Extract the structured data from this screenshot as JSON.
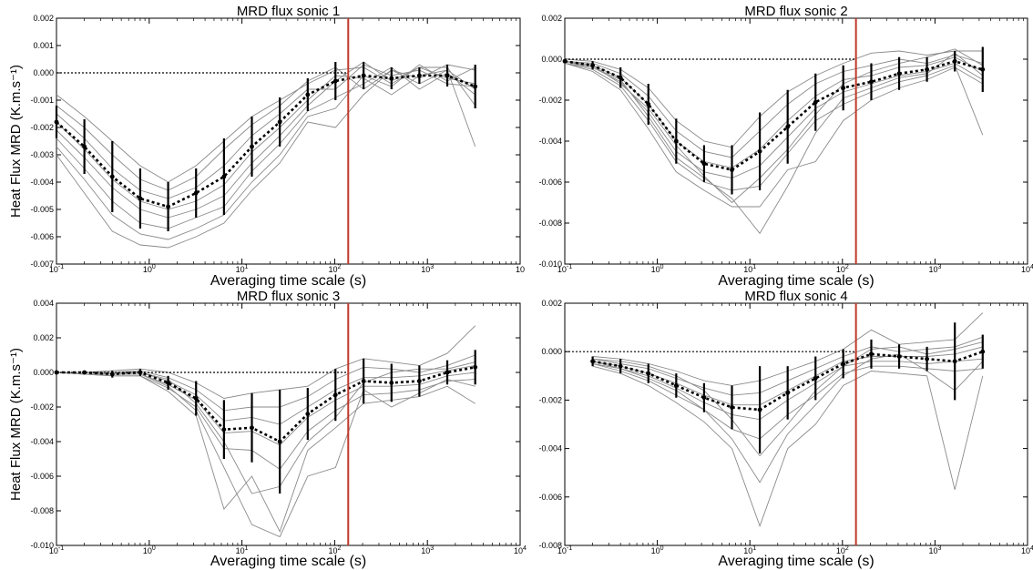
{
  "chart_data": [
    {
      "type": "line",
      "title": "MRD flux sonic 1",
      "xlabel": "Averaging time scale (s)",
      "ylabel": "Heat Flux MRD (K.m.s⁻¹)",
      "xscale": "log",
      "xlim": [
        0.1,
        10000
      ],
      "ylim": [
        -0.007,
        0.002
      ],
      "ytick_labels": [
        "0.002",
        "0.001",
        "0.000",
        "-0.001",
        "-0.002",
        "-0.003",
        "-0.004",
        "-0.005",
        "-0.006",
        "-0.007"
      ],
      "xtick_labels": [
        {
          "base": "10",
          "exp": "-1"
        },
        {
          "base": "10",
          "exp": "0"
        },
        {
          "base": "10",
          "exp": "1"
        },
        {
          "base": "10",
          "exp": "2"
        },
        {
          "base": "10",
          "exp": "3"
        },
        {
          "base": "10",
          "exp": ""
        }
      ],
      "vline_x": 140,
      "vline_color": "#c0392b",
      "zero_line": true,
      "x": [
        0.1,
        0.2,
        0.4,
        0.8,
        1.6,
        3.2,
        6.4,
        12.8,
        25.6,
        51.2,
        102,
        205,
        410,
        819,
        1638,
        3277
      ],
      "mean": [
        -0.0018,
        -0.0027,
        -0.0038,
        -0.0046,
        -0.0049,
        -0.0044,
        -0.0038,
        -0.0027,
        -0.0018,
        -0.0008,
        -0.0003,
        -0.0001,
        -0.0002,
        -0.0001,
        -0.0001,
        -0.0005
      ],
      "std": [
        0.0006,
        0.001,
        0.0013,
        0.0011,
        0.0009,
        0.0009,
        0.0014,
        0.0011,
        0.0009,
        0.0006,
        0.0007,
        0.0005,
        0.0004,
        0.0003,
        0.0004,
        0.0008
      ],
      "individual_series": [
        [
          -0.0008,
          -0.0016,
          -0.0025,
          -0.0034,
          -0.004,
          -0.0034,
          -0.0025,
          -0.0016,
          -0.001,
          -0.0004,
          0.0001,
          0.0002,
          -0.0004,
          0.0002,
          0.0002,
          -0.0012
        ],
        [
          -0.0012,
          -0.002,
          -0.003,
          -0.0039,
          -0.0043,
          -0.0038,
          -0.0028,
          -0.0019,
          -0.0012,
          -0.0003,
          0.0002,
          -0.0006,
          0.0001,
          -0.0002,
          0.0003,
          0.0001
        ],
        [
          -0.0015,
          -0.0024,
          -0.0035,
          -0.0043,
          -0.0046,
          -0.0042,
          -0.0034,
          -0.0023,
          -0.0015,
          -0.0006,
          -0.0006,
          0.0003,
          -0.0001,
          0.0001,
          -0.0004,
          -0.0005
        ],
        [
          -0.0018,
          -0.0028,
          -0.0039,
          -0.0047,
          -0.005,
          -0.0047,
          -0.0041,
          -0.0029,
          -0.002,
          -0.001,
          -0.0001,
          -0.0002,
          -0.0008,
          -0.0001,
          0.0001,
          -0.0027
        ],
        [
          -0.0021,
          -0.0031,
          -0.0042,
          -0.005,
          -0.0053,
          -0.005,
          -0.0045,
          -0.0033,
          -0.0023,
          -0.0012,
          -0.0003,
          0.0004,
          -0.0003,
          0.0002,
          -0.0002,
          -0.0004
        ],
        [
          -0.0024,
          -0.0035,
          -0.0047,
          -0.0055,
          -0.0057,
          -0.0053,
          -0.0049,
          -0.0036,
          -0.0026,
          -0.0014,
          -0.0009,
          -0.0004,
          0.0002,
          -0.0006,
          0.0,
          -0.0008
        ],
        [
          -0.0027,
          -0.0039,
          -0.0052,
          -0.0059,
          -0.0061,
          -0.0057,
          -0.0052,
          -0.004,
          -0.003,
          -0.0016,
          -0.0013,
          -0.0001,
          -0.0005,
          0.0003,
          -0.0003,
          0.0002
        ],
        [
          -0.003,
          -0.0044,
          -0.0058,
          -0.0063,
          -0.0064,
          -0.006,
          -0.0055,
          -0.0043,
          -0.0033,
          -0.0018,
          -0.002,
          -0.0008,
          0.0001,
          -0.0004,
          0.0001,
          -0.0006
        ]
      ]
    },
    {
      "type": "line",
      "title": "MRD flux sonic 2",
      "xlabel": "Averaging time scale (s)",
      "ylabel": "",
      "xscale": "log",
      "xlim": [
        0.1,
        10000
      ],
      "ylim": [
        -0.01,
        0.002
      ],
      "ytick_labels": [
        "0.002",
        "0.000",
        "-0.002",
        "-0.004",
        "-0.006",
        "-0.008",
        "-0.010"
      ],
      "xtick_labels": [
        {
          "base": "10",
          "exp": "-1"
        },
        {
          "base": "10",
          "exp": "0"
        },
        {
          "base": "10",
          "exp": "1"
        },
        {
          "base": "10",
          "exp": "2"
        },
        {
          "base": "10",
          "exp": "3"
        },
        {
          "base": "10",
          "exp": "4"
        }
      ],
      "vline_x": 140,
      "vline_color": "#c0392b",
      "zero_line": true,
      "x": [
        0.1,
        0.2,
        0.4,
        0.8,
        1.6,
        3.2,
        6.4,
        12.8,
        25.6,
        51.2,
        102,
        205,
        410,
        819,
        1638,
        3277
      ],
      "mean": [
        -0.0001,
        -0.0003,
        -0.0009,
        -0.0022,
        -0.004,
        -0.0051,
        -0.0054,
        -0.0045,
        -0.0033,
        -0.0021,
        -0.0014,
        -0.0011,
        -0.0007,
        -0.0005,
        -0.0001,
        -0.0005
      ],
      "std": [
        0.0001,
        0.0002,
        0.0005,
        0.001,
        0.0011,
        0.0009,
        0.0012,
        0.0019,
        0.0018,
        0.0014,
        0.0011,
        0.0009,
        0.0008,
        0.0006,
        0.0005,
        0.0011
      ],
      "individual_series": [
        [
          0.0,
          -0.0001,
          -0.0005,
          -0.0014,
          -0.003,
          -0.004,
          -0.0043,
          -0.0028,
          -0.0016,
          -0.0008,
          -0.0002,
          0.0003,
          0.0004,
          0.0002,
          0.0004,
          0.0004
        ],
        [
          -0.0001,
          -0.0002,
          -0.0007,
          -0.0018,
          -0.0035,
          -0.0045,
          -0.0048,
          -0.0035,
          -0.0022,
          -0.0012,
          -0.0006,
          -0.0003,
          0.0,
          -0.0002,
          0.0002,
          -0.0002
        ],
        [
          -0.0001,
          -0.0003,
          -0.0009,
          -0.0022,
          -0.004,
          -0.005,
          -0.0053,
          -0.0044,
          -0.003,
          -0.0018,
          -0.001,
          -0.0008,
          -0.0004,
          -0.0003,
          0.0001,
          -0.0006
        ],
        [
          -0.0002,
          -0.0004,
          -0.0011,
          -0.0026,
          -0.0045,
          -0.0055,
          -0.0058,
          -0.0052,
          -0.0038,
          -0.0024,
          -0.0016,
          -0.0012,
          -0.0008,
          -0.0006,
          -0.0002,
          -0.001
        ],
        [
          -0.0002,
          -0.0005,
          -0.0013,
          -0.003,
          -0.005,
          -0.006,
          -0.0064,
          -0.0062,
          -0.0046,
          -0.003,
          -0.0022,
          -0.0016,
          -0.0011,
          -0.0008,
          -0.0003,
          -0.0037
        ],
        [
          -0.0002,
          -0.0006,
          -0.0015,
          -0.0034,
          -0.0055,
          -0.0064,
          -0.0072,
          -0.0072,
          -0.0054,
          -0.005,
          -0.003,
          -0.002,
          -0.0014,
          -0.001,
          -0.0004,
          -0.0012
        ],
        [
          -0.0001,
          -0.0004,
          -0.001,
          -0.0028,
          -0.0048,
          -0.0058,
          -0.0068,
          -0.0085,
          -0.0062,
          -0.0036,
          -0.0019,
          -0.0014,
          -0.0009,
          -0.0007,
          0.0003,
          -0.0008
        ],
        [
          -0.0001,
          -0.0003,
          -0.0012,
          -0.0024,
          -0.0042,
          -0.0057,
          -0.007,
          -0.0058,
          -0.0044,
          -0.0027,
          -0.0012,
          -0.0006,
          -0.0002,
          0.0001,
          0.0005,
          -0.0003
        ]
      ]
    },
    {
      "type": "line",
      "title": "MRD flux sonic 3",
      "xlabel": "Averaging time scale (s)",
      "ylabel": "Heat Flux MRD (K.m.s⁻¹)",
      "xscale": "log",
      "xlim": [
        0.1,
        10000
      ],
      "ylim": [
        -0.01,
        0.004
      ],
      "ytick_labels": [
        "0.004",
        "0.002",
        "0.000",
        "-0.002",
        "-0.004",
        "-0.006",
        "-0.008",
        "-0.010"
      ],
      "xtick_labels": [
        {
          "base": "10",
          "exp": "-1"
        },
        {
          "base": "10",
          "exp": "0"
        },
        {
          "base": "10",
          "exp": "1"
        },
        {
          "base": "10",
          "exp": "2"
        },
        {
          "base": "10",
          "exp": "3"
        },
        {
          "base": "10",
          "exp": "4"
        }
      ],
      "vline_x": 140,
      "vline_color": "#c0392b",
      "zero_line": true,
      "x": [
        0.1,
        0.2,
        0.4,
        0.8,
        1.6,
        3.2,
        6.4,
        12.8,
        25.6,
        51.2,
        102,
        205,
        410,
        819,
        1638,
        3277
      ],
      "mean": [
        0.0,
        0.0,
        -0.0001,
        0.0,
        -0.0006,
        -0.0015,
        -0.0033,
        -0.0032,
        -0.004,
        -0.0024,
        -0.0013,
        -0.0005,
        -0.0006,
        -0.0005,
        0.0,
        0.0003
      ],
      "std": [
        0.0,
        0.0001,
        0.0002,
        0.0002,
        0.0004,
        0.001,
        0.0017,
        0.002,
        0.003,
        0.0015,
        0.0015,
        0.0013,
        0.0011,
        0.0009,
        0.0007,
        0.001
      ],
      "individual_series": [
        [
          0.0,
          0.0,
          0.0001,
          0.0002,
          0.0,
          -0.0006,
          -0.0015,
          -0.0012,
          -0.001,
          -0.0008,
          0.0002,
          0.0008,
          0.0006,
          0.0004,
          0.0011,
          0.0027
        ],
        [
          0.0,
          0.0,
          0.0,
          0.0001,
          -0.0003,
          -0.001,
          -0.0022,
          -0.002,
          -0.002,
          -0.0014,
          -0.0004,
          0.0003,
          0.0002,
          0.0,
          0.0004,
          0.001
        ],
        [
          0.0,
          0.0,
          -0.0001,
          0.0,
          -0.0005,
          -0.0013,
          -0.0028,
          -0.0026,
          -0.003,
          -0.002,
          -0.001,
          -0.0003,
          -0.0003,
          -0.0002,
          0.0001,
          0.0004
        ],
        [
          0.0,
          -0.0001,
          -0.0001,
          -0.0001,
          -0.0007,
          -0.0016,
          -0.0035,
          -0.0034,
          -0.0042,
          -0.0026,
          -0.0016,
          -0.0008,
          -0.0008,
          -0.0007,
          -0.0002,
          0.0
        ],
        [
          0.0,
          -0.0001,
          -0.0002,
          -0.0002,
          -0.0009,
          -0.002,
          -0.0044,
          -0.0045,
          -0.0056,
          -0.0034,
          -0.0022,
          -0.0013,
          -0.0012,
          -0.001,
          -0.0005,
          -0.0004
        ],
        [
          0.0,
          -0.0001,
          -0.0002,
          -0.0002,
          -0.0011,
          -0.0025,
          -0.0079,
          -0.006,
          -0.0092,
          -0.0045,
          -0.0032,
          -0.0018,
          -0.0016,
          -0.0014,
          -0.0008,
          -0.0018
        ],
        [
          0.0,
          0.0,
          -0.0001,
          -0.0001,
          -0.0008,
          -0.0022,
          -0.0055,
          -0.0088,
          -0.0095,
          -0.006,
          -0.0055,
          -0.001,
          -0.002,
          -0.0012,
          -0.0004,
          -0.0008
        ],
        [
          0.0,
          0.0,
          0.0,
          0.0,
          -0.0004,
          -0.0018,
          -0.004,
          -0.007,
          -0.0066,
          -0.004,
          -0.0026,
          -0.0006,
          0.0,
          0.0002,
          0.0002,
          0.0006
        ]
      ]
    },
    {
      "type": "line",
      "title": "MRD flux sonic 4",
      "xlabel": "Averaging time scale (s)",
      "ylabel": "",
      "xscale": "log",
      "xlim": [
        0.1,
        10000
      ],
      "ylim": [
        -0.008,
        0.002
      ],
      "ytick_labels": [
        "0.002",
        "0.000",
        "-0.002",
        "-0.004",
        "-0.006",
        "-0.008"
      ],
      "xtick_labels": [
        {
          "base": "10",
          "exp": "-1"
        },
        {
          "base": "10",
          "exp": "0"
        },
        {
          "base": "10",
          "exp": "1"
        },
        {
          "base": "10",
          "exp": "2"
        },
        {
          "base": "10",
          "exp": "3"
        },
        {
          "base": "10",
          "exp": "4"
        }
      ],
      "vline_x": 140,
      "vline_color": "#c0392b",
      "zero_line": true,
      "x": [
        0.2,
        0.4,
        0.8,
        1.6,
        3.2,
        6.4,
        12.8,
        25.6,
        51.2,
        102,
        205,
        410,
        819,
        1638,
        3277
      ],
      "mean": [
        -0.0004,
        -0.0006,
        -0.0009,
        -0.0014,
        -0.0019,
        -0.0023,
        -0.0024,
        -0.0017,
        -0.0011,
        -0.0005,
        -0.0001,
        -0.0002,
        -0.0003,
        -0.0004,
        0.0
      ],
      "std": [
        0.0002,
        0.0003,
        0.0004,
        0.0005,
        0.0006,
        0.0009,
        0.0018,
        0.0011,
        0.0009,
        0.0006,
        0.0006,
        0.0005,
        0.0005,
        0.0016,
        0.0007
      ],
      "individual_series": [
        [
          -0.0002,
          -0.0003,
          -0.0005,
          -0.0008,
          -0.0012,
          -0.0014,
          -0.0012,
          -0.0008,
          -0.0004,
          0.0001,
          0.0009,
          0.0003,
          0.0004,
          0.0005,
          0.0016
        ],
        [
          -0.0003,
          -0.0005,
          -0.0007,
          -0.0011,
          -0.0015,
          -0.0018,
          -0.0017,
          -0.0012,
          -0.0007,
          -0.0002,
          0.0002,
          0.0,
          0.0001,
          0.0002,
          0.0006
        ],
        [
          -0.0004,
          -0.0006,
          -0.0009,
          -0.0013,
          -0.0018,
          -0.0022,
          -0.0022,
          -0.0016,
          -0.001,
          -0.0004,
          -0.0002,
          -0.0002,
          -0.0002,
          -0.0001,
          0.0002
        ],
        [
          -0.0004,
          -0.0007,
          -0.001,
          -0.0015,
          -0.0021,
          -0.0026,
          -0.0028,
          -0.002,
          -0.0013,
          -0.0006,
          -0.0004,
          -0.0004,
          -0.0005,
          -0.0004,
          -0.0003
        ],
        [
          -0.0005,
          -0.0008,
          -0.0012,
          -0.0018,
          -0.0024,
          -0.0032,
          -0.0036,
          -0.0026,
          -0.0018,
          -0.0009,
          -0.0006,
          -0.0006,
          -0.0007,
          -0.0008,
          -0.0007
        ],
        [
          -0.0006,
          -0.0009,
          -0.0014,
          -0.0021,
          -0.0029,
          -0.004,
          -0.0072,
          -0.004,
          -0.003,
          -0.0014,
          -0.0008,
          -0.0009,
          -0.001,
          -0.0057,
          -0.001
        ],
        [
          -0.0005,
          -0.0007,
          -0.0011,
          -0.0016,
          -0.0024,
          -0.0036,
          -0.0054,
          -0.0034,
          -0.0022,
          -0.001,
          -0.0003,
          -0.0001,
          -0.0008,
          -0.0016,
          -0.0004
        ],
        [
          -0.0003,
          -0.0004,
          -0.0006,
          -0.001,
          -0.0016,
          -0.0028,
          -0.0043,
          -0.003,
          -0.0016,
          -0.0006,
          0.0001,
          0.0002,
          -0.0001,
          0.0001,
          0.0004
        ]
      ]
    }
  ]
}
